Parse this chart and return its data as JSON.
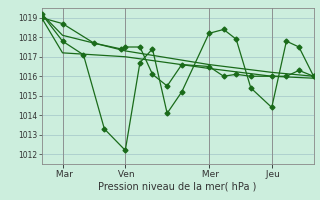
{
  "bg_color": "#cceedd",
  "grid_color": "#aacccc",
  "line_color": "#1a6b1a",
  "marker_color": "#1a6b1a",
  "xlabel": "Pression niveau de la mer( hPa )",
  "ylim": [
    1011.5,
    1019.5
  ],
  "yticks": [
    1012,
    1013,
    1014,
    1015,
    1016,
    1017,
    1018,
    1019
  ],
  "day_labels": [
    " Mar",
    " Ven",
    " Mer",
    " Jeu"
  ],
  "day_ticks": [
    1,
    4,
    8,
    11
  ],
  "xlim": [
    0,
    13
  ],
  "series1_x": [
    0.0,
    1.0,
    2.5,
    3.8,
    4.0,
    4.7,
    5.3,
    6.0,
    6.7,
    8.0,
    8.7,
    9.3,
    10.0,
    11.0,
    11.7,
    12.3,
    13.0
  ],
  "series1_y": [
    1019.0,
    1018.7,
    1017.7,
    1017.4,
    1017.5,
    1017.5,
    1016.1,
    1015.5,
    1016.6,
    1016.5,
    1016.0,
    1016.1,
    1016.0,
    1016.0,
    1016.0,
    1016.3,
    1016.0
  ],
  "series2_x": [
    0.0,
    1.0,
    2.0,
    3.0,
    4.0,
    4.7,
    5.3,
    6.0,
    6.7,
    8.0,
    8.7,
    9.3,
    10.0,
    11.0,
    11.7,
    12.3,
    13.0
  ],
  "series2_y": [
    1019.2,
    1017.8,
    1017.1,
    1013.3,
    1012.2,
    1016.7,
    1017.4,
    1014.1,
    1015.2,
    1018.2,
    1018.4,
    1017.9,
    1015.4,
    1014.4,
    1017.8,
    1017.5,
    1016.0
  ],
  "series3_x": [
    0.0,
    1.0,
    4.0,
    8.0,
    11.0,
    13.0
  ],
  "series3_y": [
    1019.2,
    1018.1,
    1017.3,
    1016.6,
    1016.2,
    1016.0
  ],
  "series4_x": [
    0.0,
    1.0,
    4.0,
    8.0,
    11.0,
    13.0
  ],
  "series4_y": [
    1019.0,
    1017.2,
    1017.0,
    1016.4,
    1016.0,
    1015.9
  ]
}
